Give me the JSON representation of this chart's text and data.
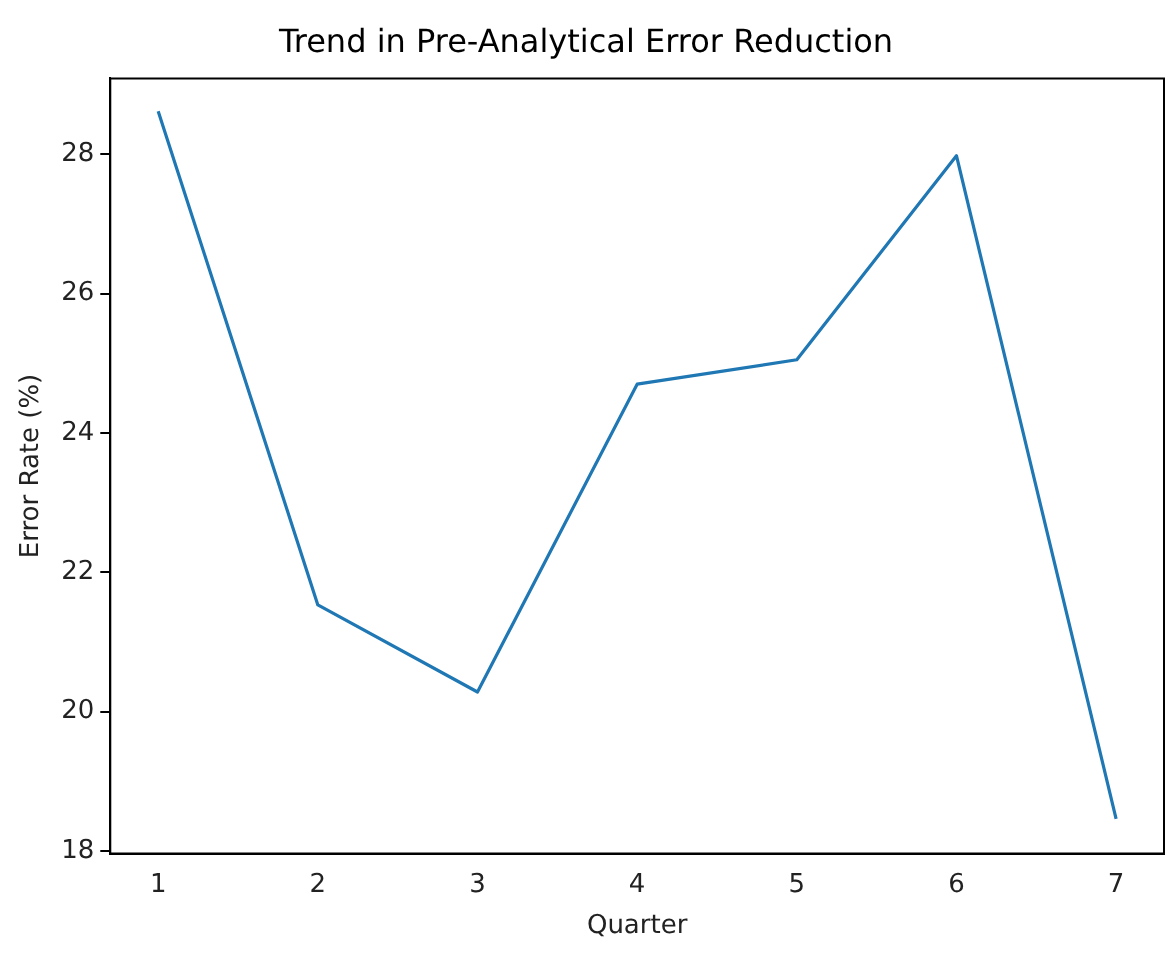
{
  "chart_data": {
    "type": "line",
    "title": "Trend in Pre-Analytical Error Reduction",
    "xlabel": "Quarter",
    "ylabel": "Error Rate (%)",
    "x": [
      1,
      2,
      3,
      4,
      5,
      6,
      7
    ],
    "series": [
      {
        "color": "#1f77b4",
        "values": [
          28.62,
          21.53,
          20.28,
          24.7,
          25.05,
          27.98,
          18.46
        ]
      }
    ],
    "xlim": [
      0.7,
      7.3
    ],
    "xticks": [
      1,
      2,
      3,
      4,
      5,
      6,
      7
    ],
    "ylim": [
      17.96,
      29.09
    ],
    "yticks": [
      18,
      20,
      22,
      24,
      26,
      28
    ],
    "grid": false,
    "legend": false,
    "marker": "none",
    "line_style": "solid"
  }
}
